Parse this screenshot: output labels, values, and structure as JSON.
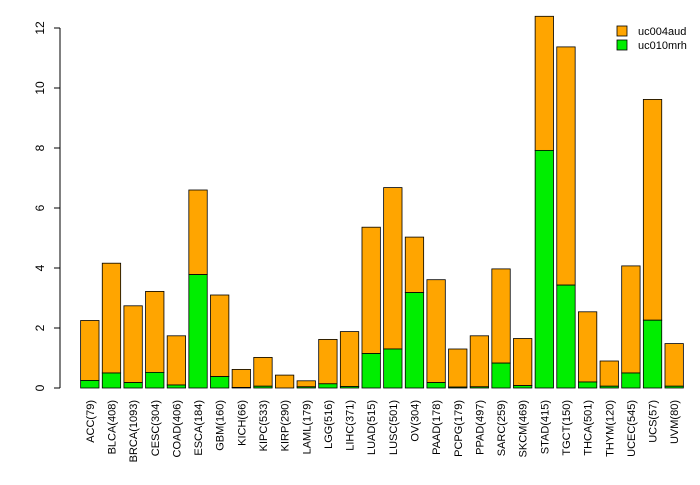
{
  "chart_data": {
    "type": "bar",
    "stacked": true,
    "title": "",
    "xlabel": "",
    "ylabel": "",
    "ylim": [
      0,
      12.4
    ],
    "yticks": [
      0,
      2,
      4,
      6,
      8,
      10,
      12
    ],
    "grid": false,
    "legend_position": "top-right",
    "categories": [
      "ACC(79)",
      "BLCA(408)",
      "BRCA(1093)",
      "CESC(304)",
      "COAD(406)",
      "ESCA(184)",
      "GBM(160)",
      "KICH(66)",
      "KIPC(533)",
      "KIRP(290)",
      "LAML(179)",
      "LGG(516)",
      "LIHC(371)",
      "LUAD(515)",
      "LUSC(501)",
      "OV(304)",
      "PAAD(178)",
      "PCPG(179)",
      "PPAD(497)",
      "SARC(259)",
      "SKCM(469)",
      "STAD(415)",
      "TGCT(150)",
      "THCA(501)",
      "THYM(120)",
      "UCEC(545)",
      "UCS(57)",
      "UVM(80)"
    ],
    "series": [
      {
        "name": "uc010mrh",
        "color": "#00ee00",
        "values": [
          0.25,
          0.5,
          0.18,
          0.52,
          0.1,
          3.78,
          0.38,
          0.02,
          0.06,
          0.0,
          0.04,
          0.14,
          0.05,
          1.15,
          1.3,
          3.18,
          0.18,
          0.03,
          0.04,
          0.83,
          0.08,
          7.92,
          3.43,
          0.2,
          0.06,
          0.5,
          2.26,
          0.06
        ]
      },
      {
        "name": "uc004aud",
        "color": "#ffa500",
        "values": [
          2.0,
          3.66,
          2.56,
          2.7,
          1.64,
          2.82,
          2.72,
          0.6,
          0.96,
          0.43,
          0.2,
          1.48,
          1.83,
          4.21,
          5.38,
          1.85,
          3.43,
          1.27,
          1.7,
          3.14,
          1.57,
          4.47,
          7.94,
          2.34,
          0.84,
          3.57,
          7.36,
          1.42
        ]
      }
    ],
    "legend": [
      {
        "name": "uc004aud",
        "color": "#ffa500"
      },
      {
        "name": "uc010mrh",
        "color": "#00ee00"
      }
    ]
  }
}
